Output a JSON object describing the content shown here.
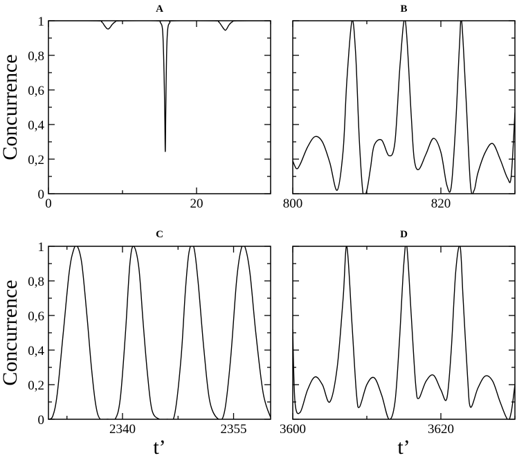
{
  "chart_data": [
    {
      "type": "line",
      "title": "A",
      "ylabel": "Concurrence",
      "xlabel": "",
      "xlim": [
        0,
        30
      ],
      "ylim": [
        0,
        1
      ],
      "xticks": [
        0,
        20
      ],
      "yticks": [
        0,
        0.2,
        0.4,
        0.6,
        0.8,
        1
      ],
      "ytick_labels": [
        "0",
        "0,2",
        "0,4",
        "0,6",
        "0,8",
        "1"
      ],
      "show_ytick_labels": true,
      "series": [
        {
          "x": [
            0,
            6.5,
            7.2,
            7.6,
            7.9,
            8.1,
            8.3,
            8.6,
            9.0,
            9.7,
            14.6,
            15.1,
            15.4,
            15.55,
            15.65,
            15.72,
            15.78,
            15.85,
            15.95,
            16.1,
            16.4,
            16.9,
            22.4,
            23.0,
            23.4,
            23.7,
            23.9,
            24.1,
            24.4,
            24.8,
            25.5,
            30
          ],
          "y": [
            1,
            1,
            0.993,
            0.97,
            0.955,
            0.953,
            0.96,
            0.978,
            0.993,
            1,
            1,
            0.99,
            0.95,
            0.8,
            0.6,
            0.42,
            0.245,
            0.5,
            0.8,
            0.95,
            0.99,
            1,
            1,
            0.993,
            0.97,
            0.952,
            0.945,
            0.955,
            0.977,
            0.993,
            1,
            1
          ]
        }
      ]
    },
    {
      "type": "line",
      "title": "B",
      "ylabel": "",
      "xlabel": "",
      "xlim": [
        800,
        830
      ],
      "ylim": [
        0,
        1
      ],
      "xticks": [
        800,
        820
      ],
      "yticks": [
        0,
        0.2,
        0.4,
        0.6,
        0.8,
        1
      ],
      "show_ytick_labels": false,
      "series": [
        {
          "x": [
            800,
            800.5,
            801,
            802,
            803,
            804,
            805,
            806,
            806.8,
            807.3,
            808,
            808.5,
            809,
            809.5,
            810,
            810.5,
            811,
            812,
            813,
            813.8,
            814.5,
            815.2,
            816,
            816.4,
            817,
            818,
            819,
            820,
            820.8,
            821.4,
            822,
            822.5,
            822.8,
            823.4,
            824,
            824.5,
            825,
            826,
            827,
            828,
            829,
            829.5,
            830
          ],
          "y": [
            0.19,
            0.145,
            0.17,
            0.27,
            0.33,
            0.3,
            0.18,
            0.02,
            0.25,
            0.65,
            1,
            0.8,
            0.3,
            0.0,
            0.02,
            0.15,
            0.28,
            0.31,
            0.22,
            0.3,
            0.75,
            1,
            0.45,
            0.2,
            0.14,
            0.23,
            0.32,
            0.24,
            0.05,
            0.04,
            0.4,
            0.85,
            1,
            0.55,
            0.05,
            0.02,
            0.12,
            0.24,
            0.29,
            0.2,
            0.09,
            0.1,
            0.47
          ]
        }
      ]
    },
    {
      "type": "line",
      "title": "C",
      "ylabel": "Concurrence",
      "xlabel": "t’",
      "xlim": [
        2330,
        2360
      ],
      "ylim": [
        0,
        1
      ],
      "xticks": [
        2340,
        2355
      ],
      "yticks": [
        0,
        0.2,
        0.4,
        0.6,
        0.8,
        1
      ],
      "ytick_labels": [
        "0",
        "0,2",
        "0,4",
        "0,6",
        "0,8",
        "1"
      ],
      "show_ytick_labels": true,
      "series": [
        {
          "x": [
            2330,
            2330.6,
            2331.2,
            2332,
            2332.8,
            2333.4,
            2333.9,
            2334.5,
            2335.2,
            2335.8,
            2336.4,
            2337,
            2338,
            2339,
            2339.7,
            2340.4,
            2341,
            2341.5,
            2342.2,
            2342.8,
            2343.4,
            2344,
            2345,
            2346,
            2347,
            2347.9,
            2348.5,
            2349,
            2349.6,
            2350.2,
            2351,
            2351.8,
            2353,
            2353.8,
            2354.6,
            2355.4,
            2356,
            2356.5,
            2357.2,
            2358,
            2359,
            2360
          ],
          "y": [
            0.0,
            0.02,
            0.15,
            0.5,
            0.85,
            0.98,
            1,
            0.9,
            0.6,
            0.3,
            0.08,
            0.0,
            0.0,
            0.0,
            0.12,
            0.5,
            0.9,
            1,
            0.88,
            0.55,
            0.25,
            0.05,
            0.0,
            0.0,
            0.02,
            0.35,
            0.75,
            0.97,
            1,
            0.8,
            0.4,
            0.1,
            0.0,
            0.05,
            0.35,
            0.8,
            0.98,
            1,
            0.85,
            0.5,
            0.15,
            0.01
          ]
        }
      ]
    },
    {
      "type": "line",
      "title": "D",
      "ylabel": "",
      "xlabel": "t’",
      "xlim": [
        3600,
        3630
      ],
      "ylim": [
        0,
        1
      ],
      "xticks": [
        3600,
        3620
      ],
      "yticks": [
        0,
        0.2,
        0.4,
        0.6,
        0.8,
        1
      ],
      "show_ytick_labels": false,
      "series": [
        {
          "x": [
            3600,
            3600.3,
            3601,
            3602,
            3603,
            3604,
            3605,
            3606,
            3606.8,
            3607.3,
            3608,
            3608.6,
            3609,
            3610,
            3611,
            3612,
            3613,
            3613.8,
            3614.4,
            3615,
            3615.4,
            3616,
            3616.6,
            3617,
            3618,
            3619,
            3620,
            3620.8,
            3621.4,
            3622,
            3622.6,
            3623,
            3623.6,
            3624,
            3625,
            3626,
            3627,
            3628,
            3629,
            3629.5,
            3630
          ],
          "y": [
            0.52,
            0.1,
            0.04,
            0.17,
            0.245,
            0.2,
            0.1,
            0.3,
            0.7,
            1,
            0.55,
            0.15,
            0.07,
            0.2,
            0.24,
            0.14,
            0.0,
            0.1,
            0.45,
            0.9,
            1,
            0.6,
            0.2,
            0.12,
            0.22,
            0.255,
            0.17,
            0.12,
            0.4,
            0.85,
            1,
            0.7,
            0.25,
            0.07,
            0.18,
            0.25,
            0.22,
            0.1,
            0.0,
            0.04,
            0.2
          ]
        }
      ]
    }
  ]
}
